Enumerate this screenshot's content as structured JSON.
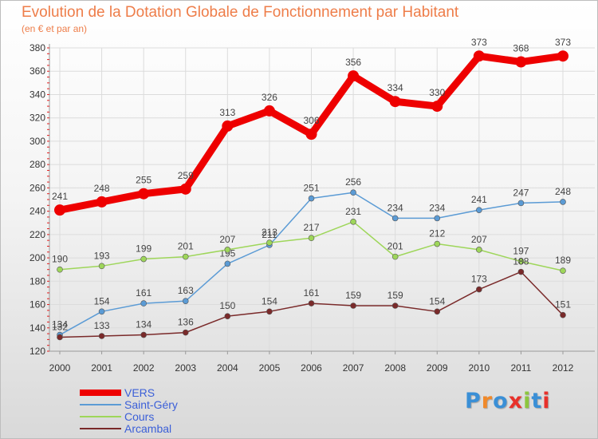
{
  "title": "Evolution de la Dotation Globale de Fonctionnement par Habitant",
  "subtitle": "(en € et par an)",
  "logo": {
    "text": "Proxiti",
    "letter_colors": [
      "#3a8fd6",
      "#f0892a",
      "#3a8fd6",
      "#e8302a",
      "#8cc63e",
      "#3a8fd6",
      "#e8302a"
    ]
  },
  "chart_data": {
    "type": "line",
    "title": "Evolution de la Dotation Globale de Fonctionnement par Habitant",
    "subtitle": "(en € et par an)",
    "x": [
      "2000",
      "2001",
      "2002",
      "2003",
      "2004",
      "2005",
      "2006",
      "2007",
      "2008",
      "2009",
      "2010",
      "2011",
      "2012"
    ],
    "ylim": [
      120,
      380
    ],
    "yticks": [
      "120",
      "140",
      "160",
      "180",
      "200",
      "220",
      "240",
      "260",
      "280",
      "300",
      "320",
      "340",
      "360",
      "380"
    ],
    "grid": true,
    "legend_position": "bottom-left",
    "series": [
      {
        "name": "VERS",
        "color": "#ee0000",
        "emphasis": "thick",
        "values": [
          241,
          248,
          255,
          259,
          313,
          326,
          306,
          356,
          334,
          330,
          373,
          368,
          373
        ],
        "labels": [
          "241",
          "248",
          "255",
          "259",
          "313",
          "326",
          "306",
          "356",
          "334",
          "330",
          "373",
          "368",
          "373"
        ]
      },
      {
        "name": "Saint-Géry",
        "color": "#5b9bd5",
        "emphasis": "thin",
        "values": [
          134,
          154,
          161,
          163,
          195,
          211,
          251,
          256,
          234,
          234,
          241,
          247,
          248
        ],
        "labels": [
          "134",
          "154",
          "161",
          "163",
          "195",
          "211",
          "251",
          "256",
          "234",
          "234",
          "241",
          "247",
          "248"
        ]
      },
      {
        "name": "Cours",
        "color": "#9ed65a",
        "emphasis": "thin",
        "values": [
          190,
          193,
          199,
          201,
          207,
          213,
          217,
          231,
          201,
          212,
          207,
          197,
          189
        ],
        "labels": [
          "190",
          "193",
          "199",
          "201",
          "207",
          "213",
          "217",
          "231",
          "201",
          "212",
          "207",
          "197",
          "189"
        ]
      },
      {
        "name": "Arcambal",
        "color": "#7a2a2a",
        "emphasis": "thin",
        "values": [
          132,
          133,
          134,
          136,
          150,
          154,
          161,
          159,
          159,
          154,
          173,
          188,
          151
        ],
        "labels": [
          "132",
          "133",
          "134",
          "136",
          "150",
          "154",
          "161",
          "159",
          "159",
          "154",
          "173",
          "188",
          "151"
        ]
      }
    ]
  }
}
